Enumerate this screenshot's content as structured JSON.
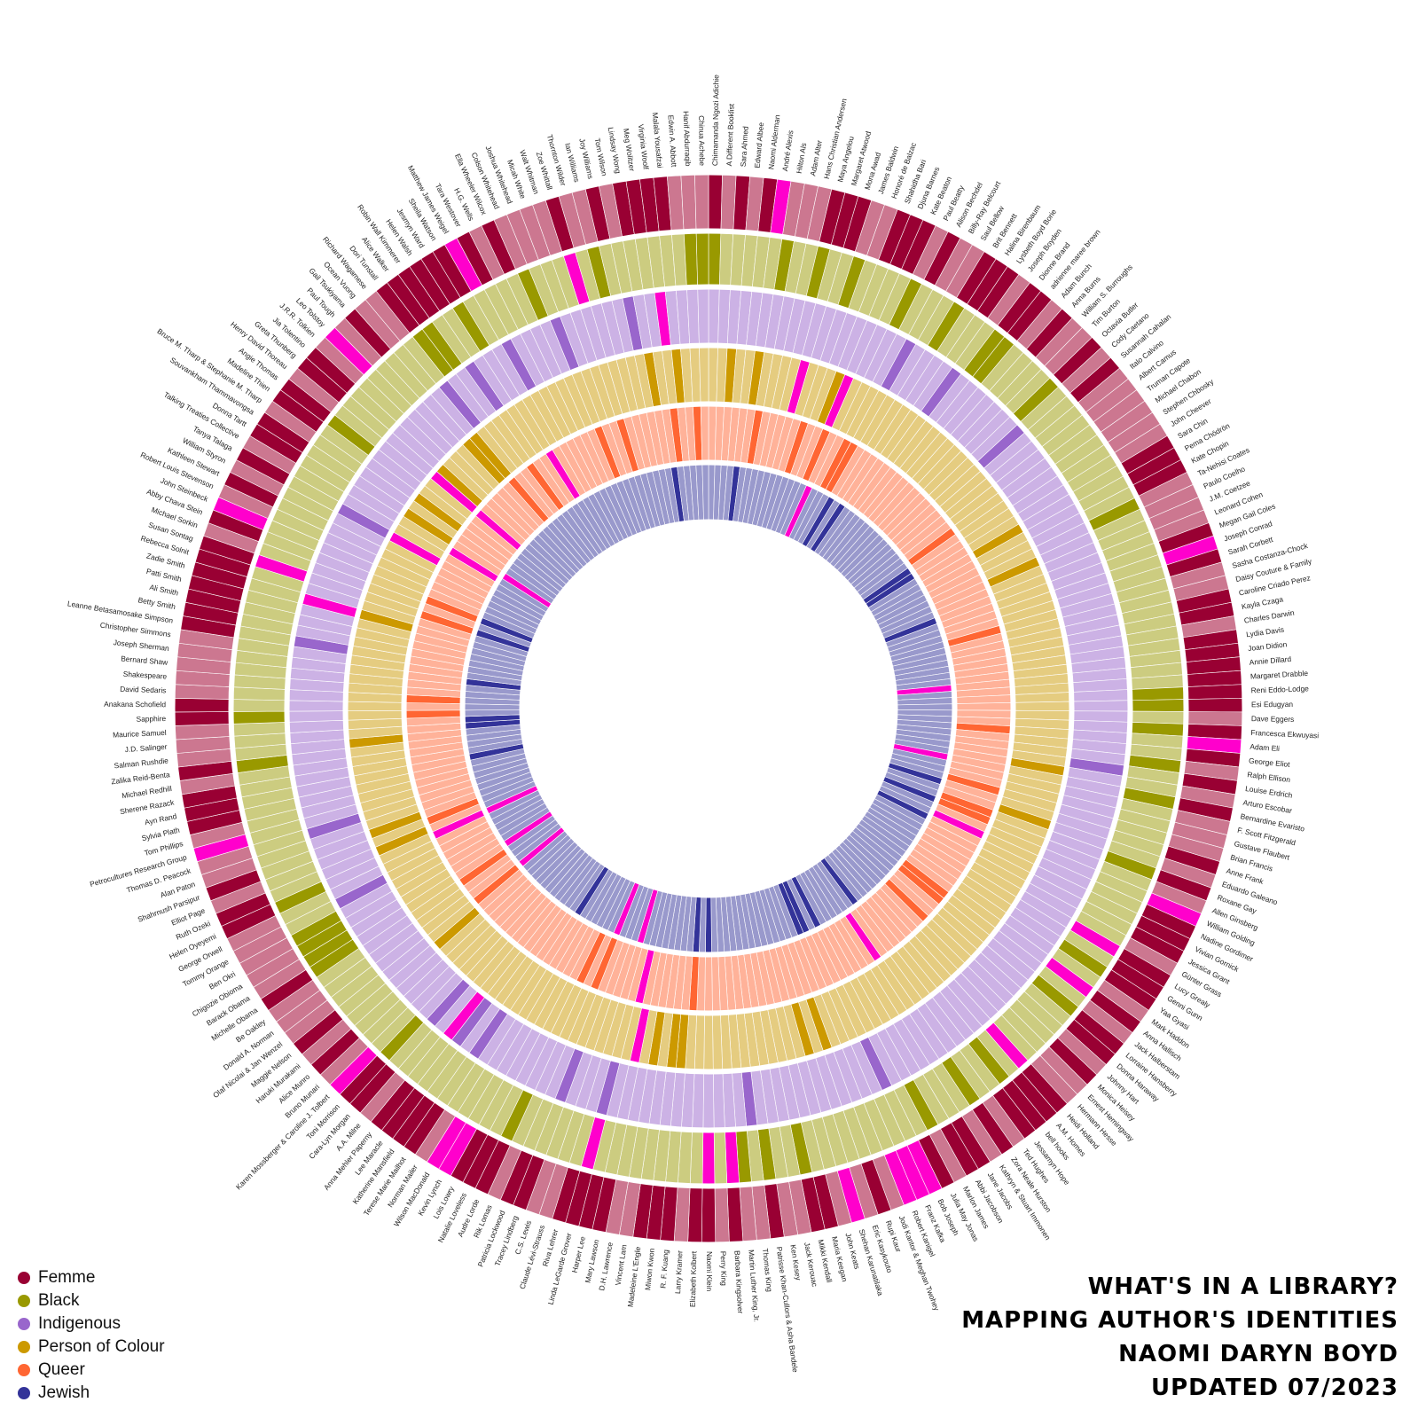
{
  "title_lines": [
    "WHAT'S IN A LIBRARY?",
    "MAPPING AUTHOR'S IDENTITIES",
    "NAOMI DARYN BOYD",
    "UPDATED 07/2023"
  ],
  "colors": {
    "background": "#ffffff",
    "divider": "#ffffff",
    "flag": "#ff00cc",
    "no": "#cc7790",
    "femme": "#990033",
    "black": "#999900",
    "indigenous": "#9966cc",
    "person_of_colour": "#cc9900",
    "queer": "#ff6633",
    "jewish": "#333399"
  },
  "legend": [
    {
      "label": "Femme",
      "color": "#990033"
    },
    {
      "label": "Black",
      "color": "#999900"
    },
    {
      "label": "Indigenous",
      "color": "#9966cc"
    },
    {
      "label": "Person of Colour",
      "color": "#cc9900"
    },
    {
      "label": "Queer",
      "color": "#ff6633"
    },
    {
      "label": "Jewish",
      "color": "#333399"
    }
  ],
  "chart_data": {
    "type": "radial-bar",
    "rings": [
      {
        "name": "Femme",
        "yes_color": "#990033",
        "no_color": "#cc7790"
      },
      {
        "name": "Black",
        "yes_color": "#999900",
        "no_color": "#cccc80"
      },
      {
        "name": "Indigenous",
        "yes_color": "#9966cc",
        "no_color": "#ccb2e5"
      },
      {
        "name": "Person of Colour",
        "yes_color": "#cc9900",
        "no_color": "#e5cc80"
      },
      {
        "name": "Queer",
        "yes_color": "#ff6633",
        "no_color": "#ffb299"
      },
      {
        "name": "Jewish",
        "yes_color": "#333399",
        "no_color": "#9999cc"
      }
    ],
    "authors": [
      "Chimamanda Ngozi Adichie",
      "A Different Booklist",
      "Sara Ahmed",
      "Edward Albee",
      "Naomi Alderman",
      "André Alexis",
      "Hilton Als",
      "Adam Alter",
      "Hans Christian Andersen",
      "Maya Angelou",
      "Margaret Atwood",
      "Mona Awad",
      "James Baldwin",
      "Honoré de Balzac",
      "Shahidha Bari",
      "Djuna Barnes",
      "Kate Beaton",
      "Paul Beatty",
      "Alison Bechdel",
      "Billy-Ray Belcourt",
      "Saul Bellow",
      "Brit Bennett",
      "Halina Birenbaum",
      "Lysbeth Boyd Borie",
      "Joseph Boyden",
      "Dionne Brand",
      "adrienne maree brown",
      "Adam Bunch",
      "Anna Burns",
      "William S. Burroughs",
      "Tim Burton",
      "Octavia Butler",
      "Cody Caetano",
      "Susannah Cahalan",
      "Italo Calvino",
      "Albert Camus",
      "Truman Capote",
      "Michael Chabon",
      "Stephen Chbosky",
      "John Cheever",
      "Sara Chin",
      "Pema Chödrön",
      "Kate Chopin",
      "Ta-Nehisi Coates",
      "Paulo Coelho",
      "J.M. Coetzee",
      "Leonard Cohen",
      "Megan Gail Coles",
      "Joseph Conrad",
      "Sarah Corbett",
      "Sasha Costanza-Chock",
      "Daisy Couture & Family",
      "Caroline Criado Perez",
      "Kayla Czaga",
      "Charles Darwin",
      "Lydia Davis",
      "Joan Didion",
      "Annie Dillard",
      "Margaret Drabble",
      "Reni Eddo-Lodge",
      "Esi Edugyan",
      "Dave Eggers",
      "Francesca Ekwuyasi",
      "Adam Eli",
      "George Eliot",
      "Ralph Ellison",
      "Louise Erdrich",
      "Arturo Escobar",
      "Bernardine Evaristo",
      "F. Scott Fitzgerald",
      "Gustave Flaubert",
      "Brian Francis",
      "Anne Frank",
      "Eduardo Galeano",
      "Roxane Gay",
      "Allen Ginsberg",
      "William Golding",
      "Nadine Gordimer",
      "Vivian Gornick",
      "Jessica Grant",
      "Günter Grass",
      "Lucy Grealy",
      "Genni Gunn",
      "Yaa Gyasi",
      "Mark Haddon",
      "Anna Hallisch",
      "Jack Halberstam",
      "Lorraine Hansberry",
      "Donna Haraway",
      "Johnny Hart",
      "Monica Heisey",
      "Ernest Hemingway",
      "Hermann Hesse",
      "Heidi Holland",
      "A.M. Homes",
      "bell hooks",
      "Jessamyn Hope",
      "Ted Hughes",
      "Zora Neale Hurston",
      "Kathryn & Stuart Immonen",
      "Jane Jacobs",
      "Abbi Jacobson",
      "Marlon James",
      "Julia May Jonas",
      "Bob Joseph",
      "Franz Kafka",
      "Robert Kanigel",
      "Jodi Kantor & Meghan Twohey",
      "Rupi Kaur",
      "Eric Kasykouto",
      "Shehan Karunatilaka",
      "John Keats",
      "Maria Keegan",
      "Mikki Kendall",
      "Jack Kerouac",
      "Ken Kesey",
      "Patrisse Khan-Cullors & Asha Bandele",
      "Thomas King",
      "Martin Luther King, Jr.",
      "Barbara Kingsolver",
      "Perry King",
      "Naomi Klein",
      "Elizabeth Kolbert",
      "Larry Kramer",
      "R. F. Kuang",
      "Miwon Kwon",
      "Madeleine L'Engle",
      "Vincent Lam",
      "D.H. Lawrence",
      "Mary Lawson",
      "Harper Lee",
      "Linda LeGarde Grover",
      "Riva Lehrer",
      "Claude Lévi-Strauss",
      "C.S. Lewis",
      "Tracey Lindberg",
      "Patricia Lockwood",
      "Rik Lomas",
      "Audre Lorde",
      "Natalie Loveless",
      "Lois Lowry",
      "Kevin Lynch",
      "Wilson MacDonald",
      "Norman Mailer",
      "Terese Marie Mailhot",
      "Katherine Mansfield",
      "Lee Maracle",
      "Anna Mehler Paperny",
      "A.A. Milne",
      "Cara-Lyn Morgan",
      "Toni Morrison",
      "Karen Mossberger & Caroline J. Tolbert",
      "Bruno Munari",
      "Alice Munro",
      "Haruki Murakami",
      "Maggie Nelson",
      "Olaf Nicolai & Jan Wenzel",
      "Donald A. Norman",
      "Be Oakley",
      "Michelle Obama",
      "Barack Obama",
      "Chigozie Obioma",
      "Ben Okri",
      "Tommy Orange",
      "George Orwell",
      "Helen Oyeyemi",
      "Ruth Ozeki",
      "Elliot Page",
      "Shahrnush Parsipur",
      "Alan Paton",
      "Thomas D. Peacock",
      "Petrocultures Research Group",
      "Tom Phillips",
      "Sylvia Plath",
      "Ayn Rand",
      "Sherene Razack",
      "Michael Redhill",
      "Zalika Reid-Benta",
      "Salman Rushdie",
      "J.D. Salinger",
      "Maurice Samuel",
      "Sapphire",
      "Anakana Schofield",
      "David Sedaris",
      "Shakespeare",
      "Bernard Shaw",
      "Joseph Sherman",
      "Christopher Simmons",
      "Leanne Betasamosake Simpson",
      "Betty Smith",
      "Ali Smith",
      "Patti Smith",
      "Zadie Smith",
      "Rebecca Solnit",
      "Susan Sontag",
      "Michael Sorkin",
      "Abby Chava Stein",
      "John Steinbeck",
      "Robert Louis Stevenson",
      "Kathleen Stewart",
      "William Styron",
      "Tanya Talaga",
      "Talking Treaties Collective",
      "Donna Tartt",
      "Souvankham Thammavongsa",
      "Bruce M. Tharp & Stephanie M. Tharp",
      "Madeline Thien",
      "Angie Thomas",
      "Henry David Thoreau",
      "Greta Thunberg",
      "Jia Tolentino",
      "J.R.R. Tolkien",
      "Leo Tolstoy",
      "Paul Tough",
      "Gail Tsukiyama",
      "Ocean Vuong",
      "Richard Wagamese",
      "Dori Tunstall",
      "Alice Walker",
      "Robin Wall Kimmerer",
      "Helen Walsh",
      "Jesmyn Ward",
      "Sheila Watson",
      "Matthew James Weigel",
      "Tara Westover",
      "H.G. Wells",
      "Ella Wheeler Wilcox",
      "Colson Whitehead",
      "Joshua Whitehead",
      "Micah White",
      "Walt Whitman",
      "Zoe Whittall",
      "Thornton Wilder",
      "Ian Williams",
      "Joy Williams",
      "Tom Wilson",
      "Lindsay Wong",
      "Meg Wolitzer",
      "Virginia Woolf",
      "Malala Yousafzai",
      "Edwin A. Abbott",
      "Hanif Abdurraqib",
      "Chinua Achebe"
    ],
    "identities": {
      "Femme": [
        "Chimamanda Ngozi Adichie",
        "Sara Ahmed",
        "Naomi Alderman",
        "Maya Angelou",
        "Margaret Atwood",
        "Mona Awad",
        "Shahidha Bari",
        "Djuna Barnes",
        "Kate Beaton",
        "Alison Bechdel",
        "Brit Bennett",
        "Halina Birenbaum",
        "Lysbeth Boyd Borie",
        "Dionne Brand",
        "adrienne maree brown",
        "Anna Burns",
        "Octavia Butler",
        "Susannah Cahalan",
        "Sara Chin",
        "Pema Chödrön",
        "Kate Chopin",
        "Megan Gail Coles",
        "Sarah Corbett",
        "Caroline Criado Perez",
        "Kayla Czaga",
        "Lydia Davis",
        "Joan Didion",
        "Annie Dillard",
        "Margaret Drabble",
        "Reni Eddo-Lodge",
        "Esi Edugyan",
        "Francesca Ekwuyasi",
        "George Eliot",
        "Louise Erdrich",
        "Bernardine Evaristo",
        "Anne Frank",
        "Roxane Gay",
        "Nadine Gordimer",
        "Vivian Gornick",
        "Jessica Grant",
        "Lucy Grealy",
        "Genni Gunn",
        "Yaa Gyasi",
        "Anna Hallisch",
        "Lorraine Hansberry",
        "Donna Haraway",
        "Monica Heisey",
        "Heidi Holland",
        "A.M. Homes",
        "bell hooks",
        "Jessamyn Hope",
        "Zora Neale Hurston",
        "Jane Jacobs",
        "Abbi Jacobson",
        "Julia May Jonas",
        "Rupi Kaur",
        "Maria Keegan",
        "Mikki Kendall",
        "Patrisse Khan-Cullors & Asha Bandele",
        "Barbara Kingsolver",
        "Naomi Klein",
        "Elizabeth Kolbert",
        "R. F. Kuang",
        "Miwon Kwon",
        "Madeleine L'Engle",
        "Mary Lawson",
        "Harper Lee",
        "Linda LeGarde Grover",
        "Riva Lehrer",
        "Tracey Lindberg",
        "Patricia Lockwood",
        "Audre Lorde",
        "Natalie Loveless",
        "Lois Lowry",
        "Terese Marie Mailhot",
        "Katherine Mansfield",
        "Lee Maracle",
        "Anna Mehler Paperny",
        "Cara-Lyn Morgan",
        "Toni Morrison",
        "Alice Munro",
        "Maggie Nelson",
        "Michelle Obama",
        "Helen Oyeyemi",
        "Ruth Ozeki",
        "Shahrnush Parsipur",
        "Sylvia Plath",
        "Ayn Rand",
        "Sherene Razack",
        "Zalika Reid-Benta",
        "Sapphire",
        "Anakana Schofield",
        "Leanne Betasamosake Simpson",
        "Betty Smith",
        "Ali Smith",
        "Patti Smith",
        "Zadie Smith",
        "Rebecca Solnit",
        "Susan Sontag",
        "Abby Chava Stein",
        "Kathleen Stewart",
        "Tanya Talaga",
        "Donna Tartt",
        "Souvankham Thammavongsa",
        "Madeline Thien",
        "Angie Thomas",
        "Greta Thunberg",
        "Jia Tolentino",
        "Gail Tsukiyama",
        "Dori Tunstall",
        "Alice Walker",
        "Robin Wall Kimmerer",
        "Helen Walsh",
        "Jesmyn Ward",
        "Sheila Watson",
        "Tara Westover",
        "Ella Wheeler Wilcox",
        "Zoe Whittall",
        "Joy Williams",
        "Lindsay Wong",
        "Meg Wolitzer",
        "Virginia Woolf",
        "Malala Yousafzai"
      ],
      "Black": [
        "Chimamanda Ngozi Adichie",
        "Hilton Als",
        "Maya Angelou",
        "James Baldwin",
        "Paul Beatty",
        "Brit Bennett",
        "Dionne Brand",
        "adrienne maree brown",
        "Octavia Butler",
        "Ta-Nehisi Coates",
        "Reni Eddo-Lodge",
        "Esi Edugyan",
        "Francesca Ekwuyasi",
        "Ralph Ellison",
        "Bernardine Evaristo",
        "Roxane Gay",
        "Yaa Gyasi",
        "Lorraine Hansberry",
        "bell hooks",
        "Zora Neale Hurston",
        "Marlon James",
        "Mikki Kendall",
        "Patrisse Khan-Cullors & Asha Bandele",
        "Martin Luther King, Jr.",
        "Audre Lorde",
        "Toni Morrison",
        "Michelle Obama",
        "Barack Obama",
        "Chigozie Obioma",
        "Ben Okri",
        "Helen Oyeyemi",
        "Zalika Reid-Benta",
        "Sapphire",
        "Angie Thomas",
        "Dori Tunstall",
        "Alice Walker",
        "Jesmyn Ward",
        "Colson Whitehead",
        "Ian Williams",
        "Hanif Abdurraqib",
        "Chinua Achebe"
      ],
      "Indigenous": [
        "Billy-Ray Belcourt",
        "Joseph Boyden",
        "Cody Caetano",
        "Louise Erdrich",
        "Thomas King",
        "Linda LeGarde Grover",
        "Tracey Lindberg",
        "Terese Marie Mailhot",
        "Lee Maracle",
        "Tommy Orange",
        "Thomas D. Peacock",
        "Leanne Betasamosake Simpson",
        "Tanya Talaga",
        "Richard Wagamese",
        "Robin Wall Kimmerer",
        "Matthew James Weigel",
        "Joshua Whitehead",
        "Tom Wilson",
        "Bob Joseph",
        "Cara-Lyn Morgan"
      ],
      "Person of Colour": [
        "Sara Ahmed",
        "André Alexis",
        "Shahidha Bari",
        "Sara Chin",
        "Paulo Coelho",
        "Eduardo Galeano",
        "Arturo Escobar",
        "Rupi Kaur",
        "Shehan Karunatilaka",
        "R. F. Kuang",
        "Miwon Kwon",
        "Vincent Lam",
        "Haruki Murakami",
        "Ruth Ozeki",
        "Shahrnush Parsipur",
        "Salman Rushdie",
        "Souvankham Thammavongsa",
        "Madeline Thien",
        "Gail Tsukiyama",
        "Ocean Vuong",
        "Lindsay Wong",
        "Malala Yousafzai",
        "Jia Tolentino",
        "Zadie Smith"
      ],
      "Queer": [
        "Hilton Als",
        "James Baldwin",
        "Djuna Barnes",
        "Alison Bechdel",
        "Billy-Ray Belcourt",
        "Truman Capote",
        "Sasha Costanza-Chock",
        "Adam Eli",
        "Brian Francis",
        "Roxane Gay",
        "Allen Ginsberg",
        "Jack Halberstam",
        "Lorraine Hansberry",
        "Monica Heisey",
        "Larry Kramer",
        "Audre Lorde",
        "Maggie Nelson",
        "Be Oakley",
        "Elliot Page",
        "Sapphire",
        "David Sedaris",
        "Susan Sontag",
        "Abby Chava Stein",
        "Ocean Vuong",
        "Alice Walker",
        "Joshua Whitehead",
        "Zoe Whittall",
        "Virginia Woolf",
        "Patricia Lockwood",
        "Hanif Abdurraqib"
      ],
      "Jewish": [
        "Naomi Alderman",
        "Saul Bellow",
        "Halina Birenbaum",
        "Michael Chabon",
        "Stephen Chbosky",
        "Leonard Cohen",
        "Allen Ginsberg",
        "Vivian Gornick",
        "Jessamyn Hope",
        "Franz Kafka",
        "Naomi Klein",
        "Larry Kramer",
        "Norman Mailer",
        "Ayn Rand",
        "J.D. Salinger",
        "Maurice Samuel",
        "Joseph Sherman",
        "Susan Sontag",
        "Abby Chava Stein",
        "Meg Wolitzer",
        "Julia May Jonas",
        "Robert Kanigel",
        "Anne Frank"
      ]
    }
  }
}
